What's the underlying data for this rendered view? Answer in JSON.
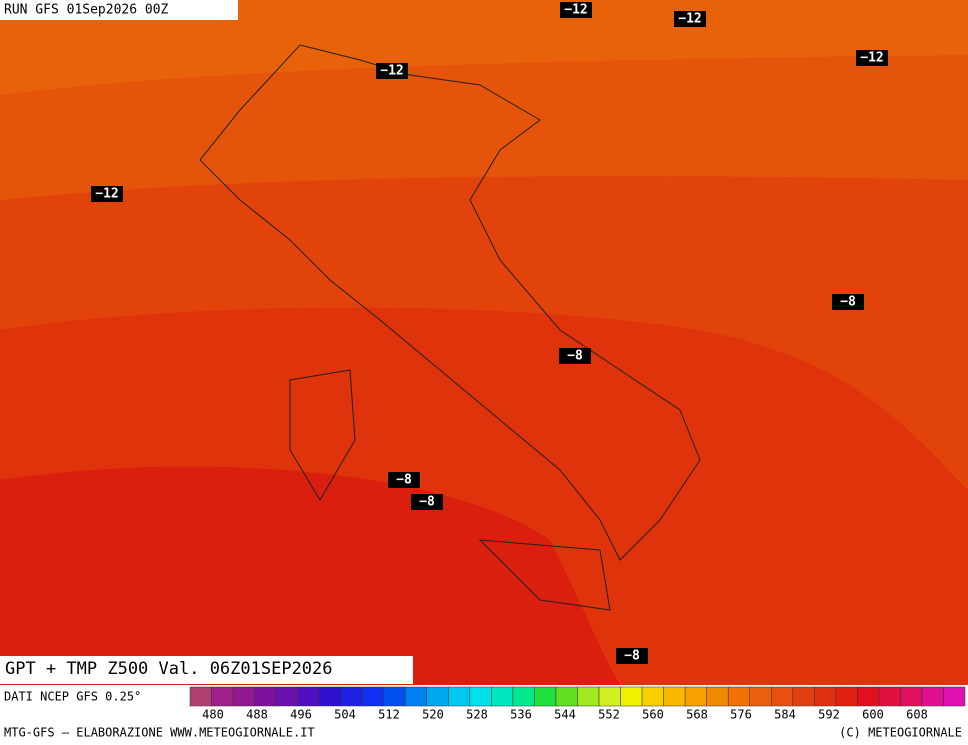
{
  "header": {
    "run": "RUN GFS 01Sep2026 00Z"
  },
  "contour_labels": [
    "−12",
    "−12",
    "−12",
    "−12",
    "−12",
    "−8",
    "−8",
    "−8",
    "−8",
    "−8"
  ],
  "footer": {
    "title": "GPT + TMP Z500 Val. 06Z01SEP2026",
    "source": "DATI NCEP GFS 0.25°",
    "credit": "MTG-GFS — ELABORAZIONE WWW.METEOGIORNALE.IT",
    "copyright": "(C) METEOGIORNALE"
  },
  "colorbar": {
    "labels": [
      480,
      488,
      496,
      504,
      512,
      520,
      528,
      536,
      544,
      552,
      560,
      568,
      576,
      584,
      592,
      600,
      608
    ],
    "colors": [
      "#b04070",
      "#a0208a",
      "#901890",
      "#8010a0",
      "#6a10b0",
      "#5010c0",
      "#3010d0",
      "#2020e0",
      "#1030f0",
      "#0050f0",
      "#0080f0",
      "#00a8f0",
      "#00c8f0",
      "#00e0e8",
      "#00e8c0",
      "#00e890",
      "#20e040",
      "#60e020",
      "#a0e820",
      "#d0f020",
      "#f0f000",
      "#f8d000",
      "#f8b800",
      "#f8a000",
      "#f08800",
      "#f07000",
      "#e86010",
      "#e85010",
      "#e04010",
      "#e03010",
      "#e02010",
      "#e01020",
      "#e01040",
      "#e01060",
      "#e01090",
      "#e010b0"
    ]
  }
}
